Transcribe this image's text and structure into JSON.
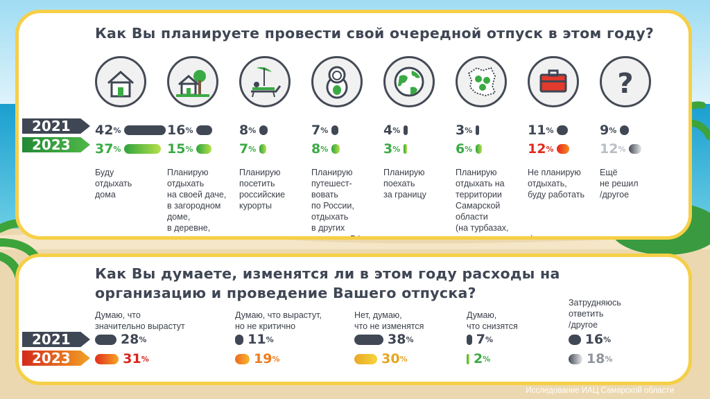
{
  "q1": {
    "title": "Как Вы планируете провести свой очередной отпуск в этом году?",
    "year_2021": "2021",
    "year_2023": "2023",
    "items": [
      {
        "icon": "home-icon",
        "v2021": "42",
        "v2023": "37",
        "frac2021": 0.42,
        "frac2023": 0.37,
        "label": "Буду\nотдыхать\nдома",
        "accent": ""
      },
      {
        "icon": "country-house-icon",
        "v2021": "16",
        "v2023": "15",
        "frac2021": 0.16,
        "frac2023": 0.15,
        "label": "Планирую\nотдыхать\nна своей даче,\nв загородном\nдоме,\nв деревне,\nна природе",
        "accent": ""
      },
      {
        "icon": "beach-lounger-icon",
        "v2021": "8",
        "v2023": "7",
        "frac2021": 0.08,
        "frac2023": 0.07,
        "label": "Планирую\nпосетить\nроссийские\nкурорты",
        "accent": ""
      },
      {
        "icon": "matryoshka-icon",
        "v2021": "7",
        "v2023": "8",
        "frac2021": 0.07,
        "frac2023": 0.08,
        "label": "Планирую\nпутешест-\nвовать\nпо России,\nотдыхать\nв других\nрегионах РФ",
        "accent": ""
      },
      {
        "icon": "globe-icon",
        "v2021": "4",
        "v2023": "3",
        "frac2021": 0.04,
        "frac2023": 0.03,
        "label": "Планирую\nпоехать\nза границу",
        "accent": ""
      },
      {
        "icon": "region-map-icon",
        "v2021": "3",
        "v2023": "6",
        "frac2021": 0.03,
        "frac2023": 0.06,
        "label": "Планирую\nотдыхать на\nтерритории\nСамарской\nобласти\n(на турбазах,\nв санаториях и т.п.)",
        "accent": ""
      },
      {
        "icon": "briefcase-icon",
        "v2021": "11",
        "v2023": "12",
        "frac2021": 0.11,
        "frac2023": 0.12,
        "label": "Не планирую\nотдыхать,\nбуду работать",
        "accent": "red"
      },
      {
        "icon": "question-icon",
        "v2021": "9",
        "v2023": "12",
        "frac2021": 0.09,
        "frac2023": 0.12,
        "label": "Ещё\nне решил\n/другое",
        "accent": "gray"
      }
    ]
  },
  "q2": {
    "title": "Как Вы думаете, изменятся ли в этом году расходы на организацию и проведение Вашего отпуска?",
    "year_2021": "2021",
    "year_2023": "2023",
    "items": [
      {
        "label": "Думаю, что\nзначительно вырастут",
        "v2021": "28",
        "v2023": "31",
        "frac2021": 0.28,
        "frac2023": 0.31,
        "style": "o1",
        "color": "c-red"
      },
      {
        "label": "Думаю, что вырастут,\nно не критично",
        "v2021": "11",
        "v2023": "19",
        "frac2021": 0.11,
        "frac2023": 0.19,
        "style": "o2",
        "color": "c-orange"
      },
      {
        "label": "Нет, думаю,\nчто не изменятся",
        "v2021": "38",
        "v2023": "30",
        "frac2021": 0.38,
        "frac2023": 0.3,
        "style": "o3",
        "color": "c-yellow"
      },
      {
        "label": "Думаю,\nчто снизятся",
        "v2021": "7",
        "v2023": "2",
        "frac2021": 0.07,
        "frac2023": 0.02,
        "style": "o4",
        "color": "c-green"
      },
      {
        "label": "Затрудняюсь\nответить\n/другое",
        "v2021": "16",
        "v2023": "18",
        "frac2021": 0.16,
        "frac2023": 0.18,
        "style": "o5",
        "color": "c-gray"
      }
    ]
  },
  "percent_sign": "%",
  "footer": "Исследование ИАЦ Самарской области",
  "colors": {
    "frame": "#f5cf47",
    "dark": "#3f4654",
    "green": "#3aaa44",
    "red": "#e02b1e",
    "sea": "#3fb6d8"
  }
}
